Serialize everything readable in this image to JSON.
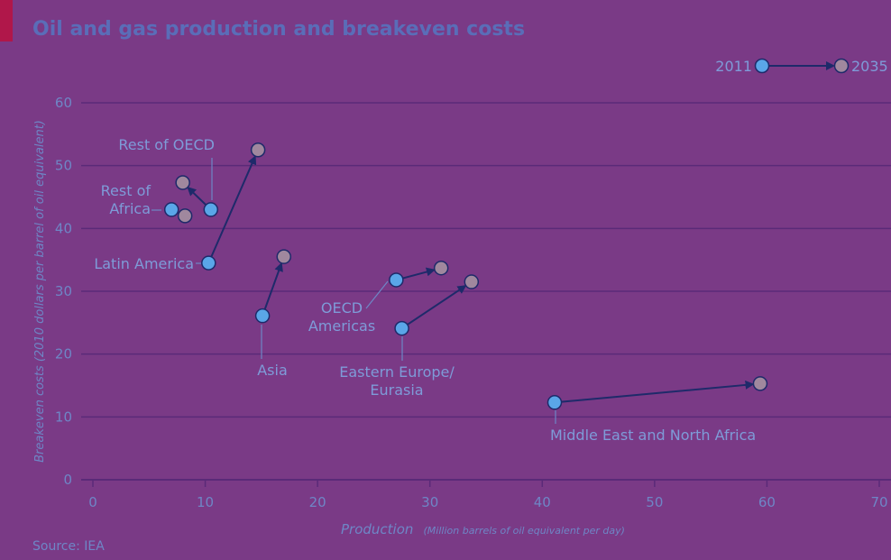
{
  "title": "Oil and gas production and breakeven costs",
  "source": "Source: IEA",
  "legend": {
    "start_label": "2011",
    "end_label": "2035",
    "placement": "top-right"
  },
  "colors": {
    "background": "#7a3a86",
    "start_point": "#5aa6e8",
    "end_point": "#a0889e",
    "arrow": "#1e2a6a",
    "text": "#7e9bd8",
    "gridline": "#5a2a78"
  },
  "chart_data": {
    "type": "scatter",
    "title": "Oil and gas production and breakeven costs",
    "xlabel_main": "Production",
    "xlabel_sub": "(Million barrels of oil equivalent per day)",
    "ylabel": "Breakeven costs (2010 dollars per barrel of oil equivalent)",
    "xlim": [
      0,
      70
    ],
    "ylim": [
      0,
      60
    ],
    "x_ticks": [
      0,
      10,
      20,
      30,
      40,
      50,
      60,
      70
    ],
    "y_ticks": [
      0,
      10,
      20,
      30,
      40,
      50,
      60
    ],
    "grid": "horizontal",
    "series": [
      {
        "name": "Rest of OECD",
        "label_lines": [
          "Rest of OECD"
        ],
        "start": [
          10.5,
          43
        ],
        "end": [
          8,
          47.3
        ]
      },
      {
        "name": "Rest of Africa",
        "label_lines": [
          "Rest of",
          "Africa"
        ],
        "start": [
          7,
          43
        ],
        "end": [
          8.2,
          42
        ]
      },
      {
        "name": "Latin America",
        "label_lines": [
          "Latin America"
        ],
        "start": [
          10.3,
          34.5
        ],
        "end": [
          14.7,
          52.5
        ]
      },
      {
        "name": "Asia",
        "label_lines": [
          "Asia"
        ],
        "start": [
          15.1,
          26.1
        ],
        "end": [
          17,
          35.5
        ]
      },
      {
        "name": "OECD Americas",
        "label_lines": [
          "OECD",
          "Americas"
        ],
        "start": [
          27,
          31.8
        ],
        "end": [
          31,
          33.7
        ]
      },
      {
        "name": "Eastern Europe/Eurasia",
        "label_lines": [
          "Eastern Europe/",
          "Eurasia"
        ],
        "start": [
          27.5,
          24.1
        ],
        "end": [
          33.7,
          31.5
        ]
      },
      {
        "name": "Middle East and North Africa",
        "label_lines": [
          "Middle East and North Africa"
        ],
        "start": [
          41.1,
          12.3
        ],
        "end": [
          59.4,
          15.3
        ]
      }
    ]
  }
}
